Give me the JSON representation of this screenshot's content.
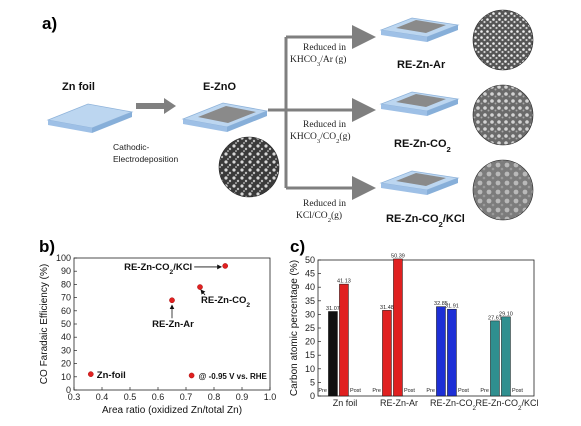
{
  "panel_a": {
    "label": "a)",
    "stage_zn": "Zn foil",
    "stage_ezno": "E-ZnO",
    "process_1": "Cathodic-",
    "process_2": "Electrodeposition",
    "branches": [
      {
        "l1": "Reduced in",
        "l2": "KHCO3/Ar (g)",
        "product": "RE-Zn-Ar"
      },
      {
        "l1": "Reduced in",
        "l2": "KHCO3/CO2(g)",
        "product": "RE-Zn-CO2"
      },
      {
        "l1": "Reduced in",
        "l2": "KCl/CO2(g)",
        "product": "RE-Zn-CO2/KCl"
      }
    ]
  },
  "panel_b": {
    "label": "b)",
    "condition": "@ -0.95 V vs. RHE"
  },
  "panel_c": {
    "label": "c)"
  },
  "colors": {
    "slab_top": "#bcd6f0",
    "slab_edge": "#8fb3da",
    "dep_gray": "#8a8a8a",
    "arrow_gray": "#7f7f7f",
    "red": "#e02020",
    "blue": "#1d2fd6",
    "teal": "#2f8f8f"
  },
  "chart_data": [
    {
      "type": "scatter",
      "xlabel": "Area ratio (oxidized Zn/total Zn)",
      "ylabel": "CO Faradaic Efficiency (%)",
      "xlim": [
        0.3,
        1.0
      ],
      "ylim": [
        0,
        100
      ],
      "xticks": [
        "0.3",
        "0.4",
        "0.5",
        "0.6",
        "0.7",
        "0.8",
        "0.9",
        "1.0"
      ],
      "yticks": [
        "0",
        "10",
        "20",
        "30",
        "40",
        "50",
        "60",
        "70",
        "80",
        "90",
        "100"
      ],
      "points": [
        {
          "x": 0.36,
          "y": 12,
          "label": "Zn-foil"
        },
        {
          "x": 0.65,
          "y": 68,
          "label": "RE-Zn-Ar"
        },
        {
          "x": 0.75,
          "y": 78,
          "label": "RE-Zn-CO2"
        },
        {
          "x": 0.84,
          "y": 94,
          "label": "RE-Zn-CO2/KCl"
        },
        {
          "x": 0.72,
          "y": 11,
          "label": "@ -0.95 V vs. RHE"
        }
      ]
    },
    {
      "type": "bar",
      "ylabel": "Carbon atomic percentage (%)",
      "ylim": [
        0,
        50
      ],
      "yticks": [
        "0",
        "5",
        "10",
        "15",
        "20",
        "25",
        "30",
        "35",
        "40",
        "45",
        "50"
      ],
      "categories": [
        "Zn foil",
        "RE-Zn-Ar",
        "RE-Zn-CO2",
        "RE-Zn-CO2/KCl"
      ],
      "series": [
        {
          "name": "Pre",
          "values": [
            31.07,
            31.48,
            32.85,
            27.61
          ]
        },
        {
          "name": "Post",
          "values": [
            41.13,
            50.39,
            31.91,
            29.1
          ]
        }
      ],
      "value_labels": [
        [
          "31.07",
          "41.13"
        ],
        [
          "31.48",
          "50.39"
        ],
        [
          "32.85",
          "31.91"
        ],
        [
          "27.61",
          "29.10"
        ]
      ]
    }
  ]
}
